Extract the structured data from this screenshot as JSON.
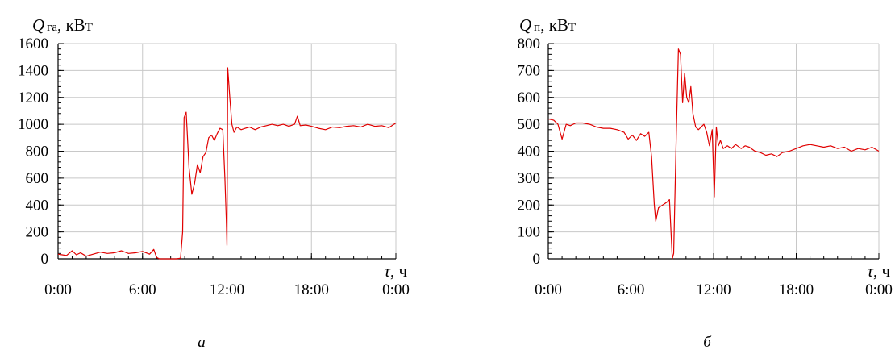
{
  "chart_data": [
    {
      "type": "line",
      "ylabel_symbol": "Q",
      "ylabel_sub": "га",
      "ylabel_unit": ", кВт",
      "xlabel_symbol": "τ",
      "xlabel_unit": ", ч",
      "caption": "а",
      "ylim": [
        0,
        1600
      ],
      "yticks": [
        0,
        200,
        400,
        600,
        800,
        1000,
        1200,
        1400,
        1600
      ],
      "xlim": [
        0,
        24
      ],
      "xticks": [
        0,
        6,
        12,
        18,
        24
      ],
      "xtick_labels": [
        "0:00",
        "6:00",
        "12:00",
        "18:00",
        "0:00"
      ],
      "grid": true,
      "color": "#e00000",
      "series": [
        {
          "x": [
            0,
            0.3,
            0.6,
            1.0,
            1.3,
            1.6,
            2.0,
            2.5,
            3.0,
            3.5,
            4.0,
            4.5,
            5.0,
            5.5,
            6.0,
            6.5,
            6.8,
            7.0,
            7.2,
            7.6,
            8.0,
            8.4,
            8.7,
            8.85,
            8.95,
            9.1,
            9.3,
            9.5,
            9.7,
            9.9,
            10.1,
            10.3,
            10.5,
            10.7,
            10.9,
            11.1,
            11.3,
            11.5,
            11.7,
            11.85,
            11.95,
            12.0,
            12.05,
            12.2,
            12.35,
            12.5,
            12.7,
            13.0,
            13.3,
            13.6,
            14.0,
            14.4,
            14.8,
            15.2,
            15.6,
            16.0,
            16.4,
            16.8,
            17.0,
            17.2,
            17.6,
            18.0,
            18.5,
            19.0,
            19.5,
            20.0,
            20.5,
            21.0,
            21.5,
            22.0,
            22.5,
            23.0,
            23.5,
            24.0
          ],
          "y": [
            35,
            30,
            25,
            60,
            30,
            45,
            20,
            35,
            50,
            40,
            45,
            60,
            40,
            45,
            55,
            35,
            70,
            10,
            0,
            0,
            0,
            0,
            5,
            200,
            1050,
            1090,
            680,
            480,
            560,
            700,
            640,
            760,
            790,
            900,
            920,
            880,
            930,
            970,
            960,
            600,
            300,
            100,
            1420,
            1200,
            1000,
            940,
            980,
            960,
            970,
            980,
            960,
            980,
            990,
            1000,
            990,
            1000,
            985,
            1000,
            1060,
            990,
            995,
            985,
            970,
            960,
            980,
            975,
            985,
            990,
            980,
            1000,
            985,
            990,
            975,
            1010
          ]
        }
      ]
    },
    {
      "type": "line",
      "ylabel_symbol": "Q",
      "ylabel_sub": "п",
      "ylabel_unit": ", кВт",
      "xlabel_symbol": "τ",
      "xlabel_unit": ", ч",
      "caption": "б",
      "ylim": [
        0,
        800
      ],
      "yticks": [
        0,
        100,
        200,
        300,
        400,
        500,
        600,
        700,
        800
      ],
      "xlim": [
        0,
        24
      ],
      "xticks": [
        0,
        6,
        12,
        18,
        24
      ],
      "xtick_labels": [
        "0:00",
        "6:00",
        "12:00",
        "18:00",
        "0:00"
      ],
      "grid": true,
      "color": "#e00000",
      "series": [
        {
          "x": [
            0,
            0.4,
            0.7,
            1.0,
            1.3,
            1.6,
            2.0,
            2.5,
            3.0,
            3.5,
            4.0,
            4.5,
            5.0,
            5.5,
            5.8,
            6.1,
            6.4,
            6.7,
            7.0,
            7.3,
            7.5,
            7.7,
            7.8,
            8.0,
            8.3,
            8.6,
            8.8,
            9.0,
            9.1,
            9.3,
            9.45,
            9.6,
            9.75,
            9.9,
            10.05,
            10.2,
            10.35,
            10.5,
            10.7,
            10.9,
            11.1,
            11.3,
            11.5,
            11.7,
            11.9,
            12.05,
            12.2,
            12.35,
            12.5,
            12.7,
            13.0,
            13.3,
            13.6,
            14.0,
            14.3,
            14.6,
            15.0,
            15.4,
            15.8,
            16.2,
            16.6,
            17.0,
            17.5,
            18.0,
            18.5,
            19.0,
            19.5,
            20.0,
            20.5,
            21.0,
            21.5,
            22.0,
            22.5,
            23.0,
            23.5,
            24.0
          ],
          "y": [
            520,
            515,
            500,
            445,
            500,
            495,
            505,
            505,
            500,
            490,
            485,
            485,
            480,
            470,
            445,
            460,
            440,
            465,
            455,
            470,
            380,
            200,
            140,
            190,
            200,
            210,
            220,
            0,
            20,
            480,
            780,
            760,
            580,
            690,
            600,
            580,
            640,
            540,
            490,
            480,
            490,
            500,
            470,
            420,
            480,
            230,
            490,
            420,
            440,
            410,
            420,
            410,
            425,
            410,
            420,
            415,
            400,
            395,
            385,
            390,
            380,
            395,
            400,
            410,
            420,
            425,
            420,
            415,
            420,
            410,
            415,
            400,
            410,
            405,
            415,
            400
          ]
        }
      ]
    }
  ]
}
